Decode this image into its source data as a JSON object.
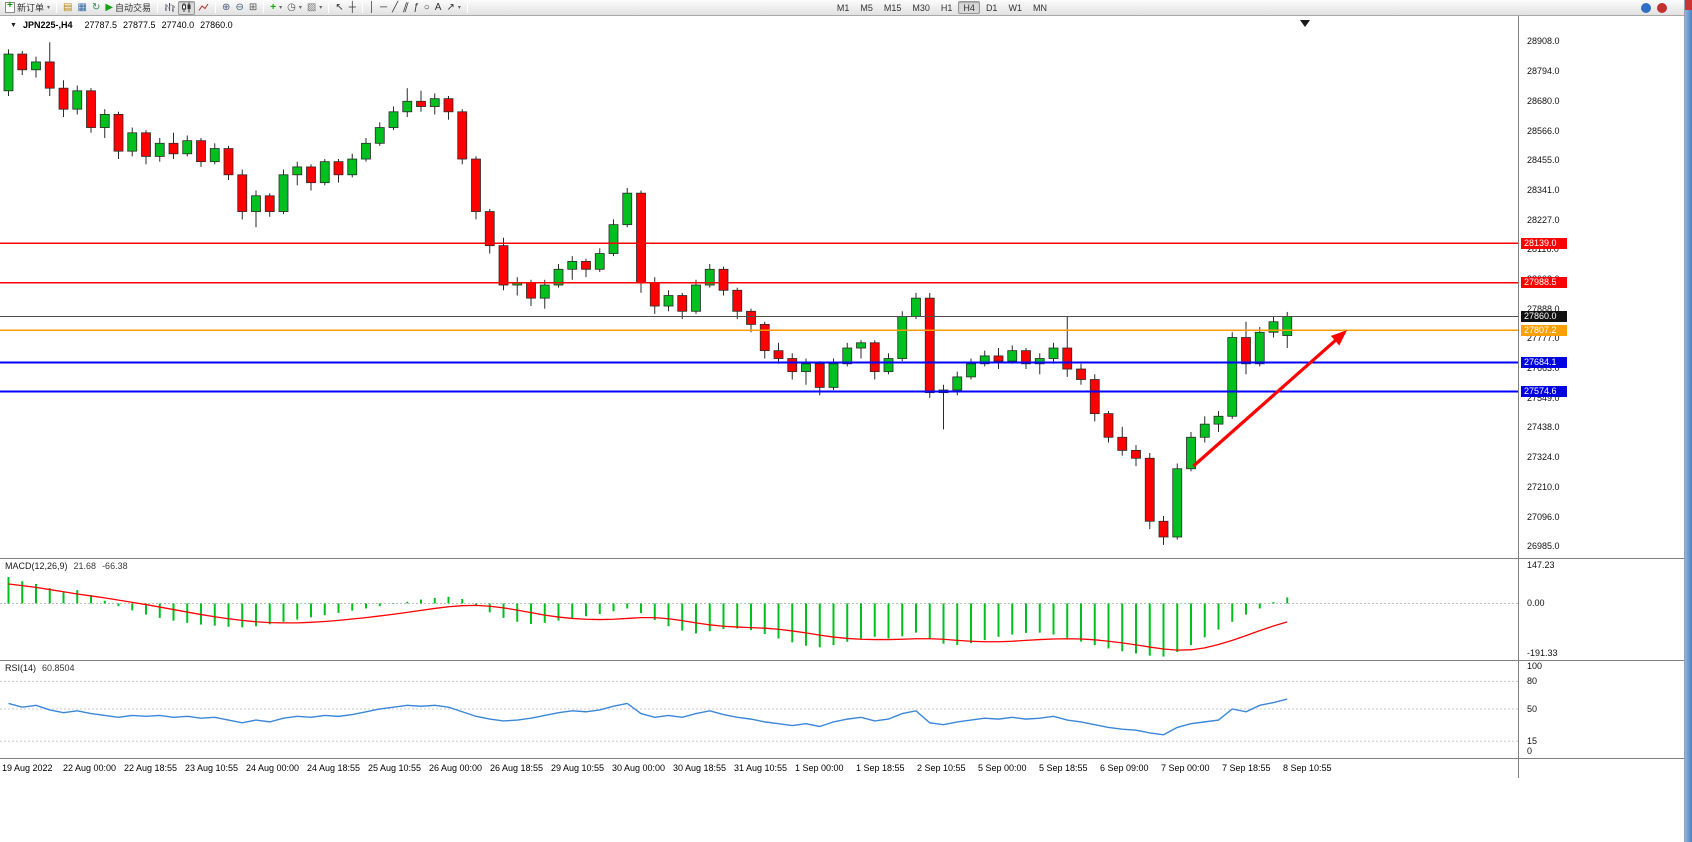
{
  "toolbar": {
    "new_order": "新订单",
    "autotrading": "自动交易",
    "timeframes": [
      "M1",
      "M5",
      "M15",
      "M30",
      "H1",
      "H4",
      "D1",
      "W1",
      "MN"
    ],
    "active_timeframe": "H4"
  },
  "chart_header": {
    "symbol": "JPN225-,H4",
    "open": "27787.5",
    "high": "27877.5",
    "low": "27740.0",
    "close": "27860.0"
  },
  "price_axis_ticks": [
    "28908.0",
    "28794.0",
    "28680.0",
    "28566.0",
    "28455.0",
    "28341.0",
    "28227.0",
    "28116.0",
    "28002.0",
    "27888.0",
    "27777.0",
    "27663.0",
    "27549.0",
    "27438.0",
    "27324.0",
    "27210.0",
    "27096.0",
    "26985.0"
  ],
  "hlines": [
    {
      "price": 28139.0,
      "label": "28139.0",
      "color": "#ff0000",
      "badge": "#ff0000",
      "width": 1.2
    },
    {
      "price": 27988.5,
      "label": "27988.5",
      "color": "#ff0000",
      "badge": "#ff0000",
      "width": 1.2
    },
    {
      "price": 27860.0,
      "label": "27860.0",
      "color": "#4d4d4d",
      "badge": "#111111",
      "width": 1.0
    },
    {
      "price": 27807.2,
      "label": "27807.2",
      "color": "#ff9900",
      "badge": "#ffa000",
      "width": 1.6
    },
    {
      "price": 27684.1,
      "label": "27684.1",
      "color": "#0000ff",
      "badge": "#0000e0",
      "width": 2.0
    },
    {
      "price": 27574.6,
      "label": "27574.6",
      "color": "#0000ff",
      "badge": "#0000e0",
      "width": 2.0
    }
  ],
  "time_labels": [
    "19 Aug 2022",
    "22 Aug 00:00",
    "22 Aug 18:55",
    "23 Aug 10:55",
    "24 Aug 00:00",
    "24 Aug 18:55",
    "25 Aug 10:55",
    "26 Aug 00:00",
    "26 Aug 18:55",
    "29 Aug 10:55",
    "30 Aug 00:00",
    "30 Aug 18:55",
    "31 Aug 10:55",
    "1 Sep 00:00",
    "1 Sep 18:55",
    "2 Sep 10:55",
    "5 Sep 00:00",
    "5 Sep 18:55",
    "6 Sep 09:00",
    "7 Sep 00:00",
    "7 Sep 18:55",
    "8 Sep 10:55"
  ],
  "chart_data": [
    {
      "type": "candlestick",
      "title": "JPN225-,H4",
      "ylim": [
        26940,
        29005
      ],
      "up_color": "#00c020",
      "down_color": "#ff0000",
      "candles_ohlc": [
        [
          28720,
          28878,
          28700,
          28860
        ],
        [
          28860,
          28872,
          28780,
          28800
        ],
        [
          28800,
          28850,
          28770,
          28830
        ],
        [
          28830,
          28905,
          28700,
          28730
        ],
        [
          28730,
          28760,
          28620,
          28650
        ],
        [
          28650,
          28740,
          28630,
          28720
        ],
        [
          28720,
          28730,
          28560,
          28580
        ],
        [
          28580,
          28650,
          28540,
          28630
        ],
        [
          28630,
          28640,
          28460,
          28490
        ],
        [
          28490,
          28580,
          28470,
          28560
        ],
        [
          28560,
          28570,
          28440,
          28470
        ],
        [
          28470,
          28540,
          28450,
          28520
        ],
        [
          28520,
          28560,
          28460,
          28480
        ],
        [
          28480,
          28550,
          28470,
          28530
        ],
        [
          28530,
          28540,
          28430,
          28450
        ],
        [
          28450,
          28520,
          28440,
          28500
        ],
        [
          28500,
          28510,
          28380,
          28400
        ],
        [
          28400,
          28420,
          28230,
          28260
        ],
        [
          28260,
          28340,
          28200,
          28320
        ],
        [
          28320,
          28330,
          28240,
          28260
        ],
        [
          28260,
          28420,
          28250,
          28400
        ],
        [
          28400,
          28450,
          28360,
          28430
        ],
        [
          28430,
          28440,
          28340,
          28370
        ],
        [
          28370,
          28460,
          28360,
          28450
        ],
        [
          28450,
          28460,
          28370,
          28400
        ],
        [
          28400,
          28480,
          28390,
          28460
        ],
        [
          28460,
          28540,
          28450,
          28520
        ],
        [
          28520,
          28600,
          28510,
          28580
        ],
        [
          28580,
          28660,
          28570,
          28640
        ],
        [
          28640,
          28730,
          28620,
          28680
        ],
        [
          28680,
          28720,
          28640,
          28660
        ],
        [
          28660,
          28710,
          28630,
          28690
        ],
        [
          28690,
          28700,
          28610,
          28640
        ],
        [
          28640,
          28650,
          28440,
          28460
        ],
        [
          28460,
          28470,
          28230,
          28260
        ],
        [
          28260,
          28270,
          28100,
          28130
        ],
        [
          28130,
          28160,
          27960,
          27980
        ],
        [
          27980,
          28010,
          27940,
          27990
        ],
        [
          27990,
          28000,
          27900,
          27930
        ],
        [
          27930,
          28000,
          27890,
          27980
        ],
        [
          27980,
          28060,
          27970,
          28040
        ],
        [
          28040,
          28090,
          28000,
          28070
        ],
        [
          28070,
          28080,
          28010,
          28040
        ],
        [
          28040,
          28120,
          28030,
          28100
        ],
        [
          28100,
          28230,
          28090,
          28210
        ],
        [
          28210,
          28350,
          28200,
          28330
        ],
        [
          28330,
          28340,
          27950,
          27990
        ],
        [
          27990,
          28010,
          27870,
          27900
        ],
        [
          27900,
          27960,
          27880,
          27940
        ],
        [
          27940,
          27950,
          27850,
          27880
        ],
        [
          27880,
          28000,
          27870,
          27980
        ],
        [
          27980,
          28060,
          27970,
          28040
        ],
        [
          28040,
          28050,
          27940,
          27960
        ],
        [
          27960,
          27970,
          27850,
          27880
        ],
        [
          27880,
          27890,
          27800,
          27830
        ],
        [
          27830,
          27840,
          27700,
          27730
        ],
        [
          27730,
          27760,
          27680,
          27700
        ],
        [
          27700,
          27720,
          27620,
          27650
        ],
        [
          27650,
          27700,
          27600,
          27680
        ],
        [
          27680,
          27690,
          27560,
          27590
        ],
        [
          27590,
          27700,
          27580,
          27680
        ],
        [
          27680,
          27760,
          27670,
          27740
        ],
        [
          27740,
          27770,
          27700,
          27760
        ],
        [
          27760,
          27770,
          27620,
          27650
        ],
        [
          27650,
          27720,
          27640,
          27700
        ],
        [
          27700,
          27880,
          27690,
          27860
        ],
        [
          27860,
          27950,
          27850,
          27930
        ],
        [
          27930,
          27950,
          27550,
          27570
        ],
        [
          27570,
          27600,
          27430,
          27580
        ],
        [
          27580,
          27650,
          27560,
          27630
        ],
        [
          27630,
          27700,
          27620,
          27680
        ],
        [
          27680,
          27730,
          27670,
          27710
        ],
        [
          27710,
          27740,
          27660,
          27690
        ],
        [
          27690,
          27750,
          27680,
          27730
        ],
        [
          27730,
          27740,
          27660,
          27680
        ],
        [
          27680,
          27720,
          27640,
          27700
        ],
        [
          27700,
          27760,
          27680,
          27740
        ],
        [
          27740,
          27860,
          27630,
          27660
        ],
        [
          27660,
          27680,
          27600,
          27620
        ],
        [
          27620,
          27640,
          27460,
          27490
        ],
        [
          27490,
          27500,
          27380,
          27400
        ],
        [
          27400,
          27440,
          27330,
          27350
        ],
        [
          27350,
          27370,
          27290,
          27320
        ],
        [
          27320,
          27340,
          27050,
          27080
        ],
        [
          27080,
          27100,
          26990,
          27020
        ],
        [
          27020,
          27300,
          27010,
          27280
        ],
        [
          27280,
          27420,
          27270,
          27400
        ],
        [
          27400,
          27480,
          27380,
          27450
        ],
        [
          27450,
          27500,
          27420,
          27480
        ],
        [
          27480,
          27800,
          27470,
          27780
        ],
        [
          27780,
          27840,
          27640,
          27680
        ],
        [
          27680,
          27820,
          27670,
          27800
        ],
        [
          27800,
          27860,
          27780,
          27840
        ],
        [
          27787.5,
          27877.5,
          27740.0,
          27860.0
        ]
      ],
      "arrow": {
        "from_bar": 86.5,
        "from_price": 27290,
        "to_bar": 97.5,
        "to_price": 27800,
        "color": "#ff0000"
      }
    },
    {
      "type": "bar",
      "label": "MACD(12,26,9)",
      "value_main": "21.68",
      "value_signal": "-66.38",
      "ylim": [
        -200,
        160
      ],
      "histogram_color": "#00c020",
      "signal_color": "#ff0000",
      "axis_labels": [
        {
          "text": "147.23",
          "value": 147.23
        },
        {
          "text": "0.00",
          "value": 0
        },
        {
          "text": "-191.33",
          "value": -191.33
        }
      ],
      "histogram": [
        95,
        80,
        70,
        55,
        40,
        48,
        30,
        10,
        -10,
        -25,
        -40,
        -52,
        -62,
        -70,
        -76,
        -80,
        -84,
        -86,
        -82,
        -75,
        -66,
        -58,
        -50,
        -42,
        -34,
        -26,
        -18,
        -10,
        -2,
        6,
        14,
        20,
        24,
        16,
        -6,
        -32,
        -52,
        -66,
        -74,
        -70,
        -62,
        -54,
        -46,
        -38,
        -28,
        -18,
        -35,
        -60,
        -82,
        -98,
        -108,
        -100,
        -92,
        -90,
        -96,
        -110,
        -126,
        -140,
        -152,
        -158,
        -150,
        -138,
        -127,
        -120,
        -126,
        -118,
        -105,
        -128,
        -145,
        -150,
        -143,
        -132,
        -120,
        -112,
        -106,
        -105,
        -112,
        -124,
        -137,
        -150,
        -162,
        -172,
        -180,
        -188,
        -191.33,
        -175,
        -150,
        -122,
        -94,
        -66,
        -40,
        -18,
        5,
        21.68
      ],
      "signal": [
        70,
        64,
        58,
        50,
        42,
        34,
        27,
        20,
        12,
        4,
        -4,
        -13,
        -22,
        -31,
        -40,
        -48,
        -55,
        -61,
        -66,
        -69,
        -70,
        -70,
        -68,
        -65,
        -61,
        -56,
        -51,
        -45,
        -39,
        -32,
        -25,
        -18,
        -12,
        -8,
        -7,
        -10,
        -16,
        -24,
        -33,
        -42,
        -49,
        -54,
        -57,
        -58,
        -57,
        -54,
        -51,
        -51,
        -55,
        -62,
        -70,
        -77,
        -82,
        -85,
        -87,
        -89,
        -93,
        -99,
        -106,
        -114,
        -121,
        -126,
        -129,
        -130,
        -130,
        -129,
        -127,
        -127,
        -129,
        -133,
        -136,
        -138,
        -138,
        -136,
        -133,
        -130,
        -128,
        -127,
        -128,
        -131,
        -136,
        -142,
        -149,
        -157,
        -164,
        -168,
        -167,
        -160,
        -148,
        -133,
        -116,
        -98,
        -81,
        -66.38
      ]
    },
    {
      "type": "line",
      "label": "RSI(14)",
      "value": "60.8504",
      "ylim": [
        0,
        100
      ],
      "levels": [
        80,
        50,
        15
      ],
      "line_color": "#3a87d9",
      "axis_labels": [
        {
          "text": "100",
          "value": 100
        },
        {
          "text": "80",
          "value": 80
        },
        {
          "text": "50",
          "value": 50
        },
        {
          "text": "15",
          "value": 15
        },
        {
          "text": "0",
          "value": 0
        }
      ],
      "values": [
        56,
        52,
        54,
        49,
        46,
        48,
        45,
        43,
        41,
        43,
        42,
        43,
        41,
        42,
        40,
        41,
        38,
        35,
        38,
        36,
        40,
        42,
        41,
        43,
        42,
        44,
        47,
        50,
        52,
        54,
        53,
        54,
        52,
        47,
        42,
        39,
        37,
        38,
        40,
        43,
        46,
        48,
        47,
        49,
        53,
        56,
        45,
        41,
        43,
        41,
        45,
        48,
        44,
        41,
        39,
        36,
        34,
        32,
        34,
        31,
        36,
        39,
        41,
        37,
        39,
        45,
        48,
        35,
        33,
        36,
        38,
        40,
        39,
        41,
        39,
        40,
        42,
        38,
        36,
        33,
        30,
        28,
        27,
        24,
        22,
        30,
        34,
        36,
        38,
        50,
        47,
        54,
        57,
        60.85
      ]
    }
  ]
}
